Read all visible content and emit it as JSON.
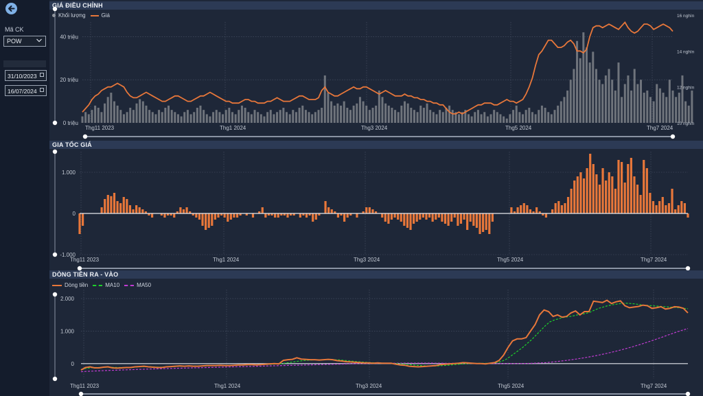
{
  "sidebar": {
    "ticker_label": "Mã CK",
    "ticker_value": "POW",
    "date_from": "31/10/2023",
    "date_to": "16/07/2024"
  },
  "colors": {
    "accent": "#e8773a",
    "volume": "#6f747c",
    "ma10": "#1ed12b",
    "ma50": "#c23bd3",
    "zero": "#e6e9ee"
  },
  "chart_data": [
    {
      "type": "bar+line",
      "title": "GIÁ ĐIỀU CHỈNH",
      "legend": [
        "Khối lượng",
        "Giá"
      ],
      "x_ticks": [
        "Thg11 2023",
        "Thg1 2024",
        "Thg3 2024",
        "Thg5 2024",
        "Thg7 2024"
      ],
      "y_ticks_left": [
        "0 triệu",
        "20 triệu",
        "40 triệu"
      ],
      "y_ticks_right": [
        "10 nghìn",
        "12 nghìn",
        "14 nghìn",
        "16 nghìn"
      ],
      "ylim_left": [
        0,
        50
      ],
      "ylim_right": [
        10000,
        16000
      ],
      "series": [
        {
          "name": "Khối lượng",
          "unit": "triệu",
          "type": "bar",
          "values": [
            3,
            5,
            4,
            6,
            8,
            7,
            5,
            9,
            12,
            14,
            10,
            8,
            6,
            4,
            5,
            7,
            6,
            9,
            11,
            10,
            8,
            6,
            5,
            4,
            6,
            5,
            7,
            8,
            6,
            5,
            4,
            3,
            5,
            6,
            4,
            5,
            7,
            8,
            6,
            4,
            3,
            5,
            6,
            5,
            4,
            6,
            7,
            5,
            4,
            6,
            8,
            7,
            5,
            4,
            6,
            5,
            4,
            3,
            5,
            6,
            4,
            5,
            6,
            7,
            5,
            4,
            6,
            5,
            7,
            8,
            6,
            5,
            4,
            5,
            6,
            7,
            22,
            14,
            10,
            8,
            9,
            8,
            10,
            7,
            6,
            8,
            9,
            12,
            10,
            8,
            6,
            7,
            8,
            15,
            12,
            9,
            8,
            7,
            6,
            5,
            8,
            10,
            9,
            7,
            6,
            5,
            8,
            7,
            9,
            6,
            5,
            4,
            6,
            5,
            7,
            8,
            6,
            5,
            4,
            5,
            6,
            4,
            3,
            5,
            6,
            4,
            5,
            3,
            4,
            6,
            5,
            4,
            3,
            2,
            4,
            6,
            8,
            5,
            4,
            6,
            7,
            5,
            4,
            6,
            8,
            7,
            5,
            4,
            6,
            8,
            10,
            12,
            15,
            20,
            25,
            38,
            30,
            42,
            35,
            28,
            33,
            25,
            20,
            18,
            22,
            25,
            20,
            15,
            28,
            12,
            18,
            22,
            15,
            25,
            18,
            20,
            14,
            15,
            12,
            10,
            18,
            16,
            14,
            12,
            20,
            15,
            12,
            14,
            22,
            10,
            8,
            15
          ]
        },
        {
          "name": "Giá",
          "unit": "nghìn",
          "type": "line",
          "values": [
            10.6,
            10.8,
            11.0,
            11.3,
            11.5,
            11.6,
            11.8,
            11.9,
            12.0,
            12.0,
            12.1,
            12.2,
            12.1,
            12.0,
            11.7,
            11.5,
            11.4,
            11.4,
            11.5,
            11.6,
            11.7,
            11.6,
            11.5,
            11.4,
            11.3,
            11.2,
            11.2,
            11.3,
            11.4,
            11.5,
            11.5,
            11.4,
            11.3,
            11.2,
            11.2,
            11.3,
            11.4,
            11.5,
            11.5,
            11.6,
            11.7,
            11.6,
            11.5,
            11.4,
            11.3,
            11.2,
            11.2,
            11.1,
            11.1,
            11.1,
            11.2,
            11.3,
            11.3,
            11.2,
            11.2,
            11.1,
            11.1,
            11.1,
            11.2,
            11.2,
            11.3,
            11.4,
            11.3,
            11.2,
            11.2,
            11.2,
            11.3,
            11.4,
            11.5,
            11.5,
            11.4,
            11.3,
            11.3,
            11.3,
            11.4,
            11.8,
            12.0,
            11.7,
            11.6,
            11.5,
            11.5,
            11.6,
            11.7,
            11.8,
            11.9,
            12.0,
            11.9,
            11.9,
            12.0,
            12.0,
            11.9,
            11.8,
            11.7,
            11.6,
            11.7,
            11.8,
            11.7,
            11.6,
            11.5,
            11.5,
            11.5,
            11.6,
            11.5,
            11.5,
            11.4,
            11.4,
            11.3,
            11.3,
            11.2,
            11.2,
            11.1,
            11.1,
            11.0,
            11.0,
            10.8,
            10.6,
            10.5,
            10.5,
            10.6,
            10.5,
            10.6,
            10.7,
            10.8,
            10.9,
            11.0,
            11.0,
            11.1,
            11.1,
            11.1,
            11.0,
            11.0,
            11.1,
            11.2,
            11.3,
            11.2,
            11.2,
            11.1,
            11.2,
            11.3,
            11.6,
            12.0,
            12.5,
            13.2,
            13.8,
            14.0,
            14.3,
            14.6,
            14.6,
            14.4,
            14.2,
            14.2,
            14.3,
            14.5,
            14.6,
            14.4,
            14.0,
            14.0,
            13.9,
            14.1,
            14.8,
            15.3,
            15.4,
            15.4,
            15.3,
            15.4,
            15.5,
            15.4,
            15.3,
            15.2,
            15.4,
            15.6,
            15.3,
            15.1,
            15.0,
            15.1,
            15.3,
            15.5,
            15.5,
            15.4,
            15.2,
            15.3,
            15.4,
            15.5,
            15.4,
            15.3,
            15.1
          ]
        }
      ]
    },
    {
      "type": "bar",
      "title": "GIA TỐC GIÁ",
      "x_ticks": [
        "Thg11 2023",
        "Thg1 2024",
        "Thg3 2024",
        "Thg5 2024",
        "Thg7 2024"
      ],
      "y_ticks": [
        "-1.000",
        "0",
        "1.000"
      ],
      "ylim": [
        -1000,
        1500
      ],
      "values": [
        -500,
        -300,
        0,
        0,
        0,
        0,
        0,
        150,
        350,
        450,
        420,
        500,
        300,
        250,
        400,
        350,
        200,
        100,
        200,
        150,
        100,
        50,
        -50,
        -100,
        0,
        0,
        -50,
        -100,
        -50,
        -50,
        -100,
        50,
        150,
        100,
        150,
        50,
        -50,
        -100,
        -150,
        -300,
        -400,
        -350,
        -300,
        -150,
        -100,
        -50,
        -100,
        -200,
        -150,
        -100,
        -100,
        -50,
        0,
        -50,
        0,
        -100,
        0,
        50,
        150,
        -100,
        -50,
        -50,
        -100,
        -100,
        -50,
        -50,
        -100,
        -50,
        -50,
        0,
        -100,
        -50,
        -100,
        -50,
        -200,
        -150,
        -50,
        0,
        300,
        150,
        100,
        50,
        -100,
        -50,
        -200,
        -100,
        -50,
        0,
        -100,
        0,
        50,
        150,
        150,
        100,
        50,
        0,
        -100,
        -200,
        -250,
        -150,
        -100,
        -150,
        -200,
        -300,
        -350,
        -400,
        -250,
        -200,
        -150,
        -100,
        -150,
        -100,
        -200,
        -150,
        -100,
        -200,
        -250,
        -300,
        -200,
        -100,
        -300,
        -250,
        -150,
        -400,
        -200,
        -300,
        -350,
        -500,
        -450,
        -400,
        -500,
        -200,
        0,
        0,
        0,
        0,
        0,
        150,
        50,
        150,
        200,
        250,
        200,
        100,
        50,
        150,
        50,
        -50,
        -100,
        0,
        100,
        250,
        300,
        200,
        250,
        400,
        600,
        800,
        900,
        1000,
        850,
        1100,
        1450,
        1200,
        950,
        700,
        1100,
        800,
        1000,
        900,
        600,
        1300,
        1250,
        750,
        1200,
        1350,
        900,
        700,
        450,
        1300,
        1100,
        500,
        300,
        200,
        300,
        400,
        200,
        250,
        600,
        100,
        200,
        300,
        250,
        -100
      ]
    },
    {
      "type": "line",
      "title": "DÒNG TIỀN RA - VÀO",
      "legend": [
        "Dòng tiền",
        "MA10",
        "MA50"
      ],
      "x_ticks": [
        "Thg11 2023",
        "Thg1 2024",
        "Thg3 2024",
        "Thg5 2024",
        "Thg7 2024"
      ],
      "y_ticks": [
        "0",
        "1.000",
        "2.000"
      ],
      "ylim": [
        -300,
        2150
      ],
      "series": [
        {
          "name": "Dòng tiền",
          "values": [
            -200,
            -120,
            -100,
            -130,
            -130,
            -110,
            -100,
            -130,
            -140,
            -130,
            -120,
            -120,
            -100,
            -90,
            -80,
            -100,
            -110,
            -120,
            -120,
            -100,
            -90,
            -80,
            -70,
            -80,
            -70,
            -80,
            -80,
            -70,
            -60,
            -60,
            -60,
            -50,
            -60,
            -60,
            -50,
            -40,
            -40,
            -30,
            -30,
            -40,
            -30,
            -20,
            -10,
            0,
            -10,
            100,
            120,
            130,
            180,
            140,
            130,
            120,
            120,
            110,
            120,
            130,
            120,
            90,
            80,
            60,
            50,
            40,
            30,
            20,
            20,
            10,
            20,
            10,
            10,
            10,
            -20,
            -40,
            -50,
            -80,
            -90,
            -100,
            -90,
            -80,
            -70,
            -60,
            -30,
            -20,
            -10,
            0,
            10,
            30,
            20,
            10,
            0,
            0,
            -10,
            10,
            30,
            100,
            260,
            500,
            700,
            760,
            760,
            800,
            1000,
            1200,
            1500,
            1650,
            1600,
            1450,
            1500,
            1430,
            1450,
            1560,
            1620,
            1500,
            1600,
            1600,
            1920,
            1900,
            1880,
            1950,
            1850,
            1900,
            1930,
            1780,
            1720,
            1740,
            1760,
            1800,
            1780,
            1700,
            1720,
            1750,
            1680,
            1700,
            1750,
            1740,
            1700,
            1560
          ]
        },
        {
          "name": "MA10",
          "values": [
            -180,
            -150,
            -130,
            -120,
            -120,
            -115,
            -110,
            -115,
            -120,
            -120,
            -118,
            -115,
            -110,
            -100,
            -95,
            -95,
            -100,
            -105,
            -110,
            -105,
            -100,
            -92,
            -85,
            -82,
            -78,
            -76,
            -76,
            -74,
            -70,
            -66,
            -63,
            -60,
            -58,
            -57,
            -55,
            -52,
            -48,
            -44,
            -40,
            -38,
            -35,
            -30,
            -25,
            -18,
            -12,
            0,
            20,
            40,
            60,
            80,
            95,
            105,
            112,
            118,
            120,
            122,
            122,
            118,
            112,
            100,
            85,
            72,
            60,
            48,
            38,
            30,
            24,
            18,
            14,
            10,
            5,
            -2,
            -10,
            -22,
            -35,
            -50,
            -60,
            -68,
            -72,
            -74,
            -70,
            -62,
            -52,
            -40,
            -28,
            -15,
            -5,
            2,
            6,
            8,
            8,
            10,
            15,
            30,
            60,
            110,
            200,
            300,
            400,
            500,
            620,
            740,
            880,
            1020,
            1160,
            1280,
            1340,
            1380,
            1420,
            1440,
            1460,
            1490,
            1520,
            1540,
            1580,
            1640,
            1700,
            1740,
            1780,
            1810,
            1830,
            1850,
            1860,
            1850,
            1840,
            1820,
            1800,
            1790,
            1780,
            1770,
            1760,
            1750,
            1740,
            1730,
            1720,
            1700,
            1690
          ]
        },
        {
          "name": "MA50",
          "values": [
            -250,
            -240,
            -232,
            -226,
            -220,
            -214,
            -208,
            -202,
            -196,
            -190,
            -185,
            -180,
            -175,
            -170,
            -165,
            -160,
            -156,
            -152,
            -148,
            -144,
            -140,
            -136,
            -132,
            -128,
            -124,
            -120,
            -116,
            -112,
            -108,
            -104,
            -100,
            -96,
            -92,
            -88,
            -84,
            -80,
            -76,
            -72,
            -68,
            -64,
            -60,
            -56,
            -52,
            -48,
            -44,
            -40,
            -36,
            -32,
            -28,
            -24,
            -20,
            -16,
            -12,
            -8,
            -4,
            0,
            2,
            4,
            6,
            8,
            10,
            11,
            12,
            13,
            14,
            14,
            14,
            14,
            14,
            14,
            13,
            12,
            11,
            10,
            9,
            8,
            7,
            6,
            5,
            4,
            3,
            2,
            1,
            0,
            0,
            0,
            1,
            2,
            4,
            8,
            14,
            22,
            32,
            46,
            62,
            80,
            100,
            120,
            142,
            166,
            192,
            220,
            250,
            282,
            316,
            352,
            390,
            430,
            472,
            516,
            562,
            610,
            660,
            712,
            766,
            820,
            876,
            930,
            984,
            1032,
            1080
          ]
        }
      ]
    }
  ]
}
